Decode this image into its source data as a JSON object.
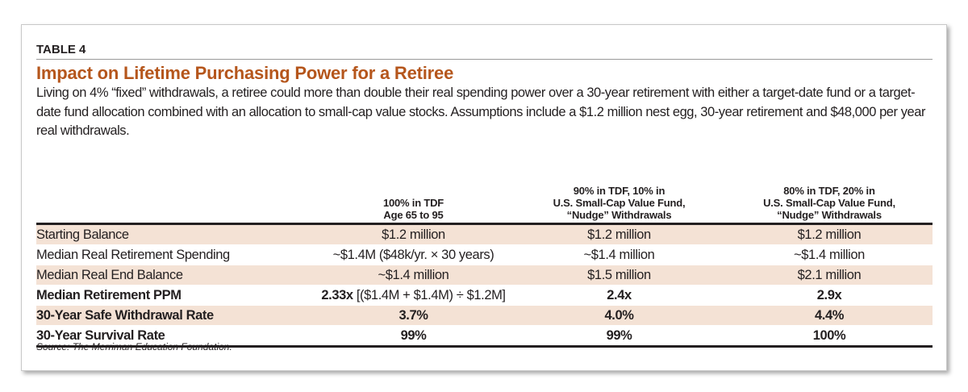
{
  "label": "TABLE 4",
  "title": "Impact on Lifetime Purchasing Power for a Retiree",
  "description": "Living on 4% “fixed” withdrawals, a retiree could more than double their real spending power over a 30-year retirement with either a target-date fund or a target-date fund allocation combined with an allocation to small-cap value stocks. Assumptions include a $1.2 million nest egg, 30-year retirement and $48,000 per year real withdrawals.",
  "columns": [
    [
      "100% in TDF",
      "Age 65 to 95"
    ],
    [
      "90% in TDF, 10% in",
      "U.S. Small-Cap Value Fund,",
      "“Nudge” Withdrawals"
    ],
    [
      "80% in TDF, 20% in",
      "U.S. Small-Cap Value Fund,",
      "“Nudge” Withdrawals"
    ]
  ],
  "rows": [
    {
      "label": "Starting Balance",
      "values": [
        "$1.2 million",
        "$1.2 million",
        "$1.2 million"
      ]
    },
    {
      "label": "Median Real Retirement Spending",
      "values": [
        "~$1.4M ($48k/yr. × 30 years)",
        "~$1.4 million",
        "~$1.4 million"
      ]
    },
    {
      "label": "Median Real End Balance",
      "values": [
        "~$1.4 million",
        "$1.5 million",
        "$2.1 million"
      ]
    },
    {
      "label": "Median Retirement PPM",
      "values": [
        "2.33x",
        "2.4x",
        "2.9x"
      ],
      "note": "[($1.4M + $1.4M) ÷ $1.2M]"
    },
    {
      "label": "30-Year Safe Withdrawal Rate",
      "values": [
        "3.7%",
        "4.0%",
        "4.4%"
      ]
    },
    {
      "label": "30-Year Survival Rate",
      "values": [
        "99%",
        "99%",
        "100%"
      ]
    }
  ],
  "source": "Source: The Merriman Education Foundation.",
  "colors": {
    "title": "#b5561c",
    "shade": "#f4e2d5"
  }
}
